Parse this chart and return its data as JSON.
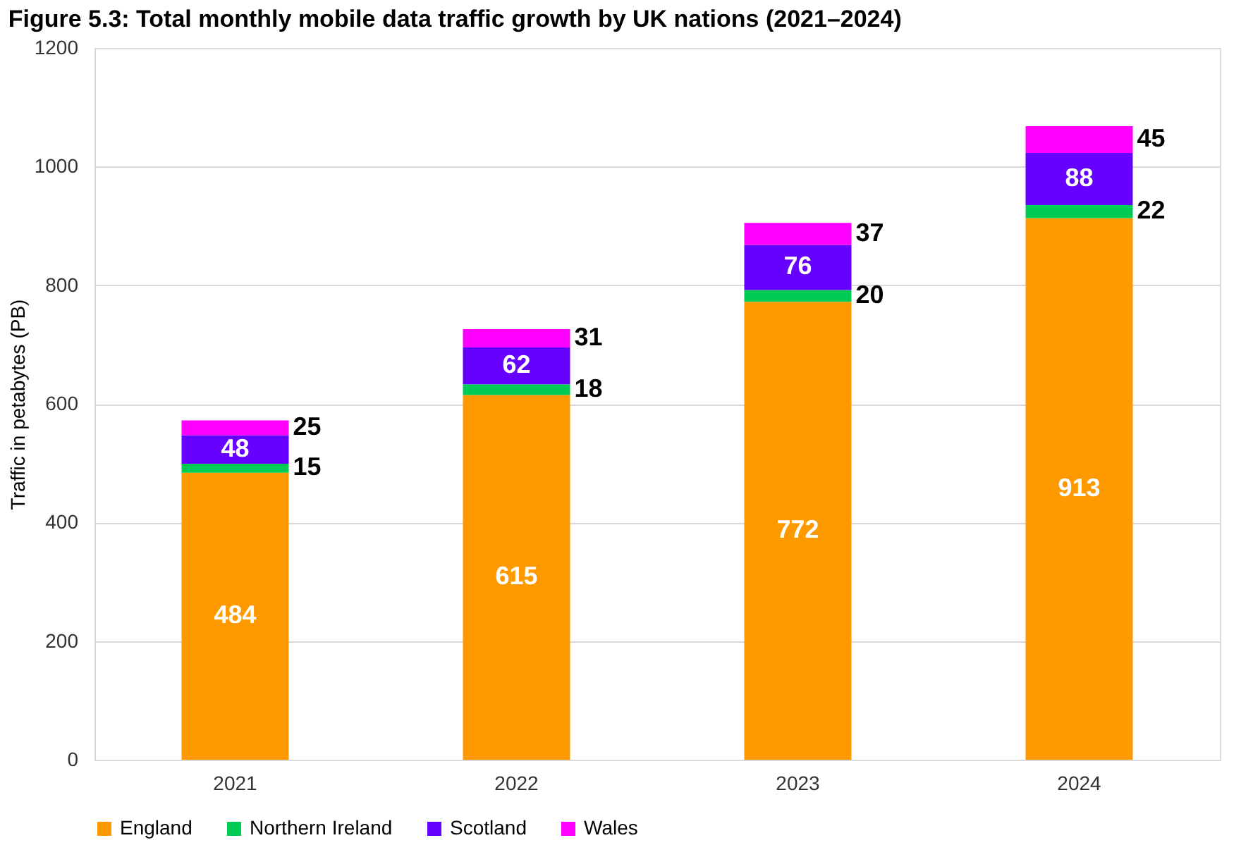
{
  "chart_data": {
    "type": "bar",
    "title": "Figure 5.3: Total monthly mobile data traffic growth by UK nations (2021–2024)",
    "ylabel": "Traffic in petabytes (PB)",
    "categories": [
      "2021",
      "2022",
      "2023",
      "2024"
    ],
    "series": [
      {
        "name": "England",
        "color": "#ff9900",
        "values": [
          484,
          615,
          772,
          913
        ]
      },
      {
        "name": "Northern Ireland",
        "color": "#00cc55",
        "values": [
          15,
          18,
          20,
          22
        ]
      },
      {
        "name": "Scotland",
        "color": "#6600ff",
        "values": [
          48,
          62,
          76,
          88
        ]
      },
      {
        "name": "Wales",
        "color": "#ff00ff",
        "values": [
          25,
          31,
          37,
          45
        ]
      }
    ],
    "stacked": true,
    "ylim": [
      0,
      1200
    ],
    "yticks": [
      0,
      200,
      400,
      600,
      800,
      1000,
      1200
    ],
    "grid": "y",
    "legend": "bottom",
    "data_labels": true
  }
}
